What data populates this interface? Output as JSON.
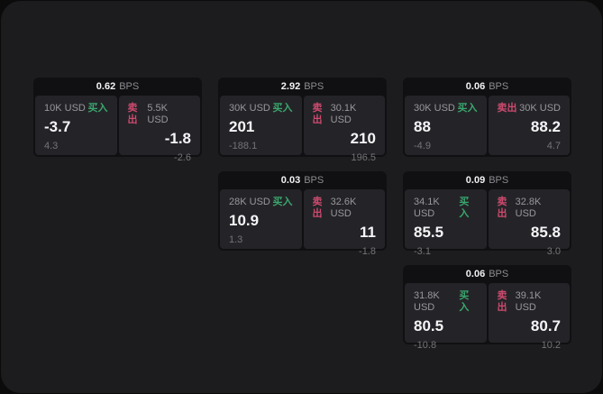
{
  "labels": {
    "bps_unit": "BPS",
    "buy": "买入",
    "sell": "卖出"
  },
  "colors": {
    "page_bg": "#0b0b0c",
    "panel_bg": "#1c1c1e",
    "card_bg": "#101012",
    "tile_bg": "#242428",
    "buy_green": "#3aa76d",
    "sell_red": "#cd4a6e",
    "price_text": "#f5f5f7",
    "muted_text": "#98989c",
    "dim_text": "#737378"
  },
  "cards": [
    {
      "bps": "0.62",
      "buy": {
        "amount": "10K USD",
        "price": "-3.7",
        "change": "4.3"
      },
      "sell": {
        "amount": "5.5K USD",
        "price": "-1.8",
        "change": "-2.6"
      }
    },
    {
      "bps": "2.92",
      "buy": {
        "amount": "30K USD",
        "price": "201",
        "change": "-188.1"
      },
      "sell": {
        "amount": "30.1K USD",
        "price": "210",
        "change": "196.5"
      }
    },
    {
      "bps": "0.06",
      "buy": {
        "amount": "30K USD",
        "price": "88",
        "change": "-4.9"
      },
      "sell": {
        "amount": "30K USD",
        "price": "88.2",
        "change": "4.7"
      }
    },
    {
      "bps": "0.03",
      "buy": {
        "amount": "28K USD",
        "price": "10.9",
        "change": "1.3"
      },
      "sell": {
        "amount": "32.6K USD",
        "price": "11",
        "change": "-1.8"
      }
    },
    {
      "bps": "0.09",
      "buy": {
        "amount": "34.1K USD",
        "price": "85.5",
        "change": "-3.1"
      },
      "sell": {
        "amount": "32.8K USD",
        "price": "85.8",
        "change": "3.0"
      }
    },
    {
      "bps": "0.06",
      "buy": {
        "amount": "31.8K USD",
        "price": "80.5",
        "change": "-10.8"
      },
      "sell": {
        "amount": "39.1K USD",
        "price": "80.7",
        "change": "10.2"
      }
    }
  ]
}
